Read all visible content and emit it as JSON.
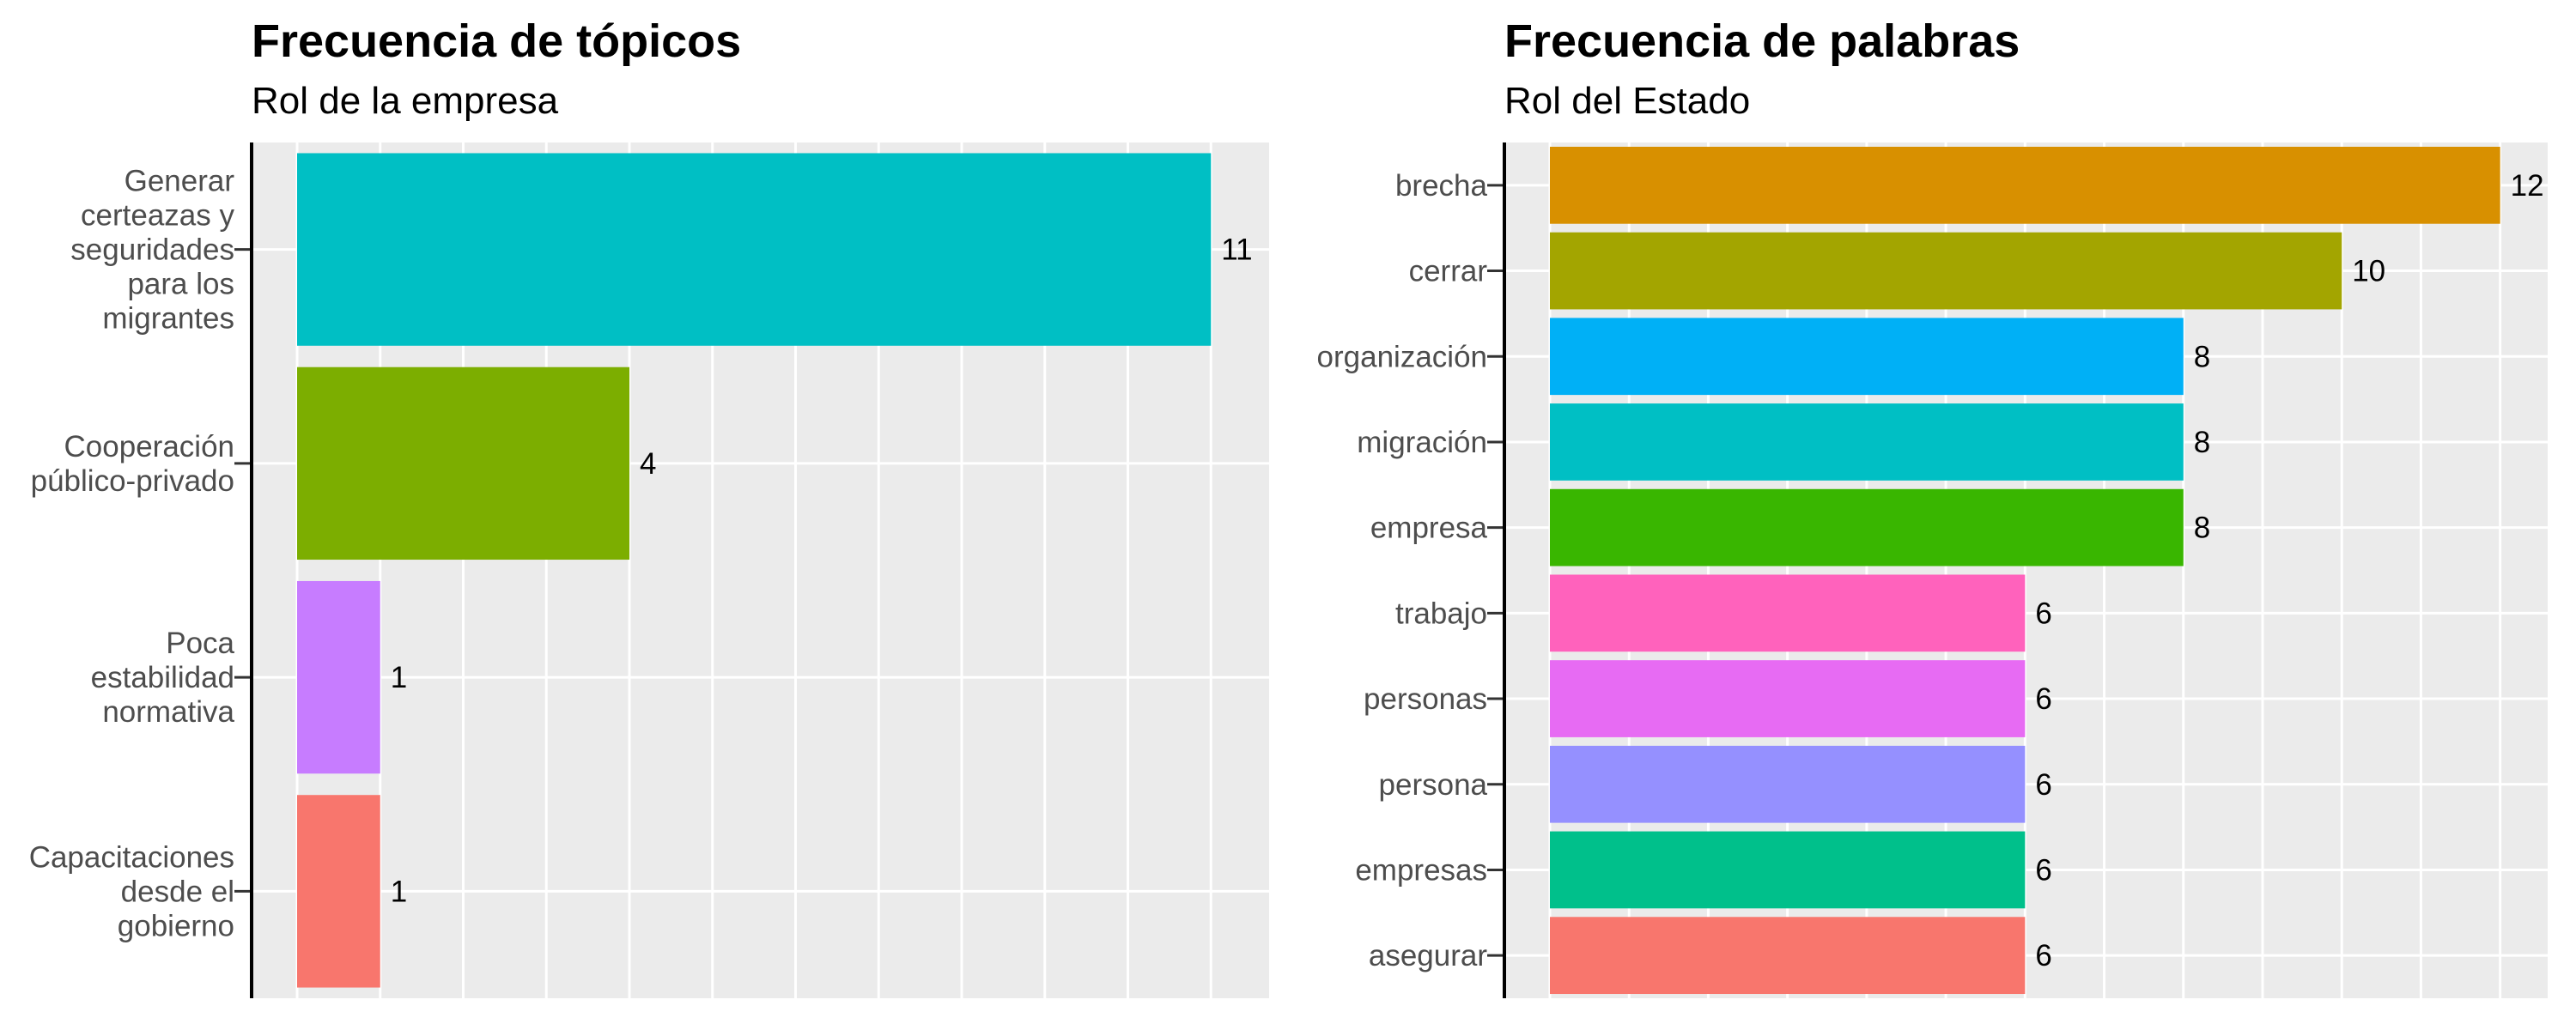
{
  "chart_data": [
    {
      "type": "bar",
      "orientation": "horizontal",
      "title": "Frecuencia de tópicos",
      "subtitle": "Rol de la empresa",
      "categories": [
        [
          "Generar",
          "certeazas y",
          "seguridades",
          "para los",
          "migrantes"
        ],
        [
          "Cooperación",
          "público-privado"
        ],
        [
          "Poca",
          "estabilidad",
          "normativa"
        ],
        [
          "Capacitaciones",
          "desde el",
          "gobierno"
        ]
      ],
      "values": [
        11,
        4,
        1,
        1
      ],
      "labels": [
        "11",
        "4",
        "1",
        "1"
      ],
      "colors": [
        "#00BFC4",
        "#7CAE00",
        "#C77CFF",
        "#F8766D"
      ],
      "xlim": [
        0,
        11.7
      ],
      "grid": true,
      "legend": "none"
    },
    {
      "type": "bar",
      "orientation": "horizontal",
      "title": "Frecuencia de palabras",
      "subtitle": "Rol del Estado",
      "categories": [
        "brecha",
        "cerrar",
        "organización",
        "migración",
        "empresa",
        "trabajo",
        "personas",
        "persona",
        "empresas",
        "asegurar"
      ],
      "values": [
        12,
        10,
        8,
        8,
        8,
        6,
        6,
        6,
        6,
        6
      ],
      "labels": [
        "12",
        "10",
        "8",
        "8",
        "8",
        "6",
        "6",
        "6",
        "6",
        "6"
      ],
      "colors": [
        "#D89000",
        "#A3A500",
        "#00B0F6",
        "#00BFC4",
        "#39B600",
        "#FF62BC",
        "#E76BF3",
        "#9590FF",
        "#00C08B",
        "#F8766D"
      ],
      "xlim": [
        0,
        12.6
      ],
      "grid": true,
      "legend": "none"
    }
  ]
}
